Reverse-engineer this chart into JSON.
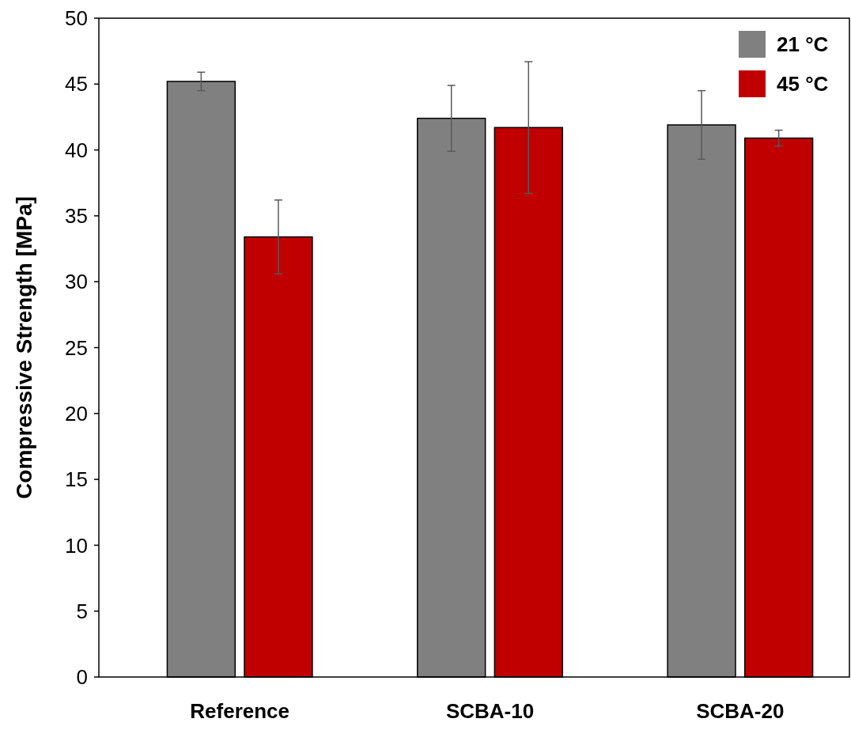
{
  "chart_data": {
    "type": "bar",
    "ylabel": "Compressive Strength [MPa]",
    "categories": [
      "Reference",
      "SCBA-10",
      "SCBA-20"
    ],
    "series": [
      {
        "name": "21 °C",
        "color": "#808080",
        "values": [
          45.2,
          42.4,
          41.9
        ],
        "errors": [
          0.7,
          2.5,
          2.6
        ]
      },
      {
        "name": "45 °C",
        "color": "#c00000",
        "values": [
          33.4,
          41.7,
          40.9
        ],
        "errors": [
          2.8,
          5.0,
          0.6
        ]
      }
    ],
    "ylim": [
      0,
      50
    ],
    "yticks": [
      0,
      5,
      10,
      15,
      20,
      25,
      30,
      35,
      40,
      45,
      50
    ],
    "grid": false,
    "legend": "top right"
  }
}
